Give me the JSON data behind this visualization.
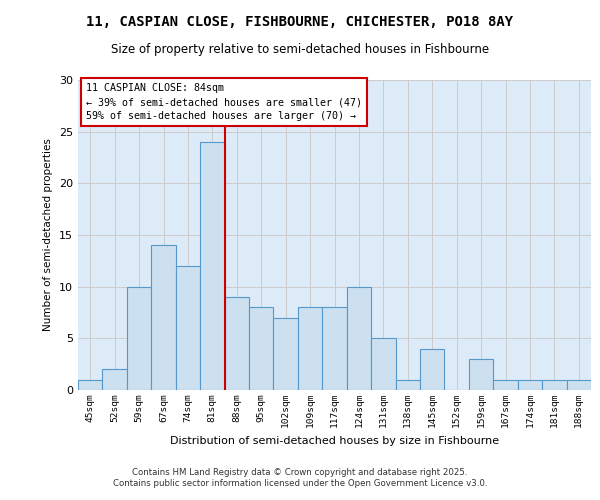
{
  "title_line1": "11, CASPIAN CLOSE, FISHBOURNE, CHICHESTER, PO18 8AY",
  "title_line2": "Size of property relative to semi-detached houses in Fishbourne",
  "xlabel": "Distribution of semi-detached houses by size in Fishbourne",
  "ylabel": "Number of semi-detached properties",
  "categories": [
    "45sqm",
    "52sqm",
    "59sqm",
    "67sqm",
    "74sqm",
    "81sqm",
    "88sqm",
    "95sqm",
    "102sqm",
    "109sqm",
    "117sqm",
    "124sqm",
    "131sqm",
    "138sqm",
    "145sqm",
    "152sqm",
    "159sqm",
    "167sqm",
    "174sqm",
    "181sqm",
    "188sqm"
  ],
  "values": [
    1,
    2,
    10,
    14,
    12,
    24,
    9,
    8,
    7,
    8,
    8,
    10,
    5,
    1,
    4,
    0,
    3,
    1,
    1,
    1,
    1
  ],
  "bar_color": "#cce0f0",
  "bar_edge_color": "#5599cc",
  "grid_color": "#cccccc",
  "background_color": "#ddeaf7",
  "property_bin_index": 5,
  "annotation_title": "11 CASPIAN CLOSE: 84sqm",
  "annotation_line2": "← 39% of semi-detached houses are smaller (47)",
  "annotation_line3": "59% of semi-detached houses are larger (70) →",
  "annotation_box_color": "#ffffff",
  "annotation_border_color": "#cc0000",
  "red_line_color": "#cc0000",
  "ylim": [
    0,
    30
  ],
  "yticks": [
    0,
    5,
    10,
    15,
    20,
    25,
    30
  ],
  "footer_line1": "Contains HM Land Registry data © Crown copyright and database right 2025.",
  "footer_line2": "Contains public sector information licensed under the Open Government Licence v3.0."
}
